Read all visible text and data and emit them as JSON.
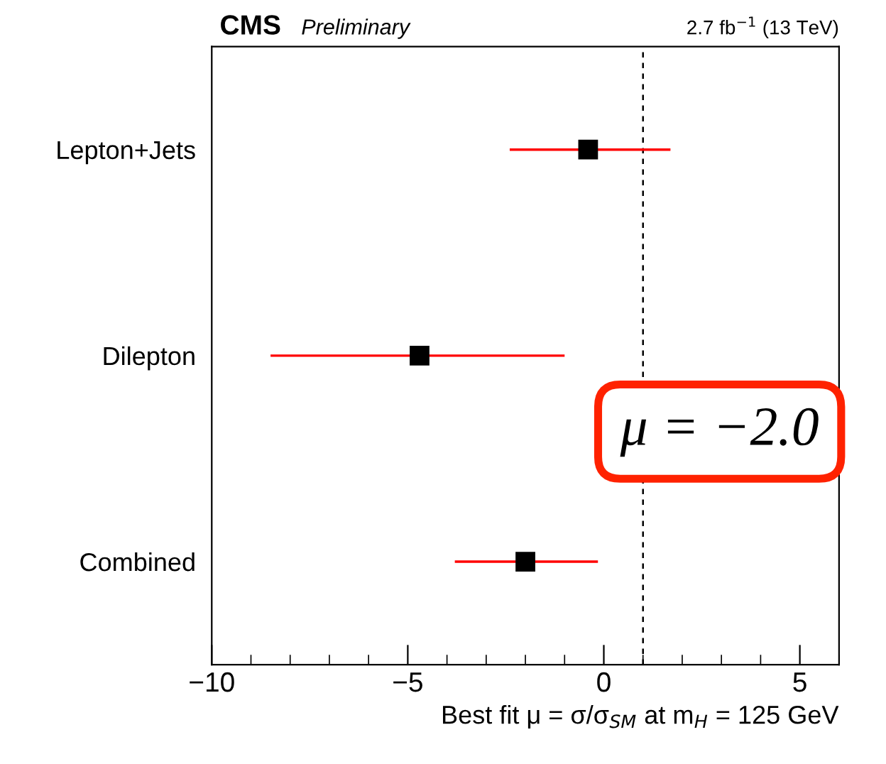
{
  "chart_data": {
    "type": "scatter",
    "orientation": "horizontal",
    "marker": "square",
    "categories": [
      "Lepton+Jets",
      "Dilepton",
      "Combined"
    ],
    "series": [
      {
        "color": "#000000",
        "values": [
          -0.4,
          -4.7,
          -2.0
        ],
        "errors": [
          [
            -2.4,
            1.7
          ],
          [
            -8.5,
            -1.0
          ],
          [
            -3.8,
            -0.15
          ]
        ]
      }
    ],
    "xlim": [
      -10,
      6
    ],
    "xticks": [
      {
        "value": -10,
        "label": "−10"
      },
      {
        "value": -5,
        "label": "−5"
      },
      0,
      5
    ],
    "xlabel": "Best fit μ = σ/σ$_{SM}$ at m$_{H}$ = 125 GeV",
    "ref_lines": [
      {
        "axis": "x",
        "value": 1,
        "color": "#000000",
        "line_style": "dashed"
      }
    ],
    "annotations": [
      "CMS",
      "Preliminary",
      "2.7 fb$^{−1}$ (13 TeV)",
      "μ = −2.0"
    ],
    "grid": false,
    "legend": false
  }
}
